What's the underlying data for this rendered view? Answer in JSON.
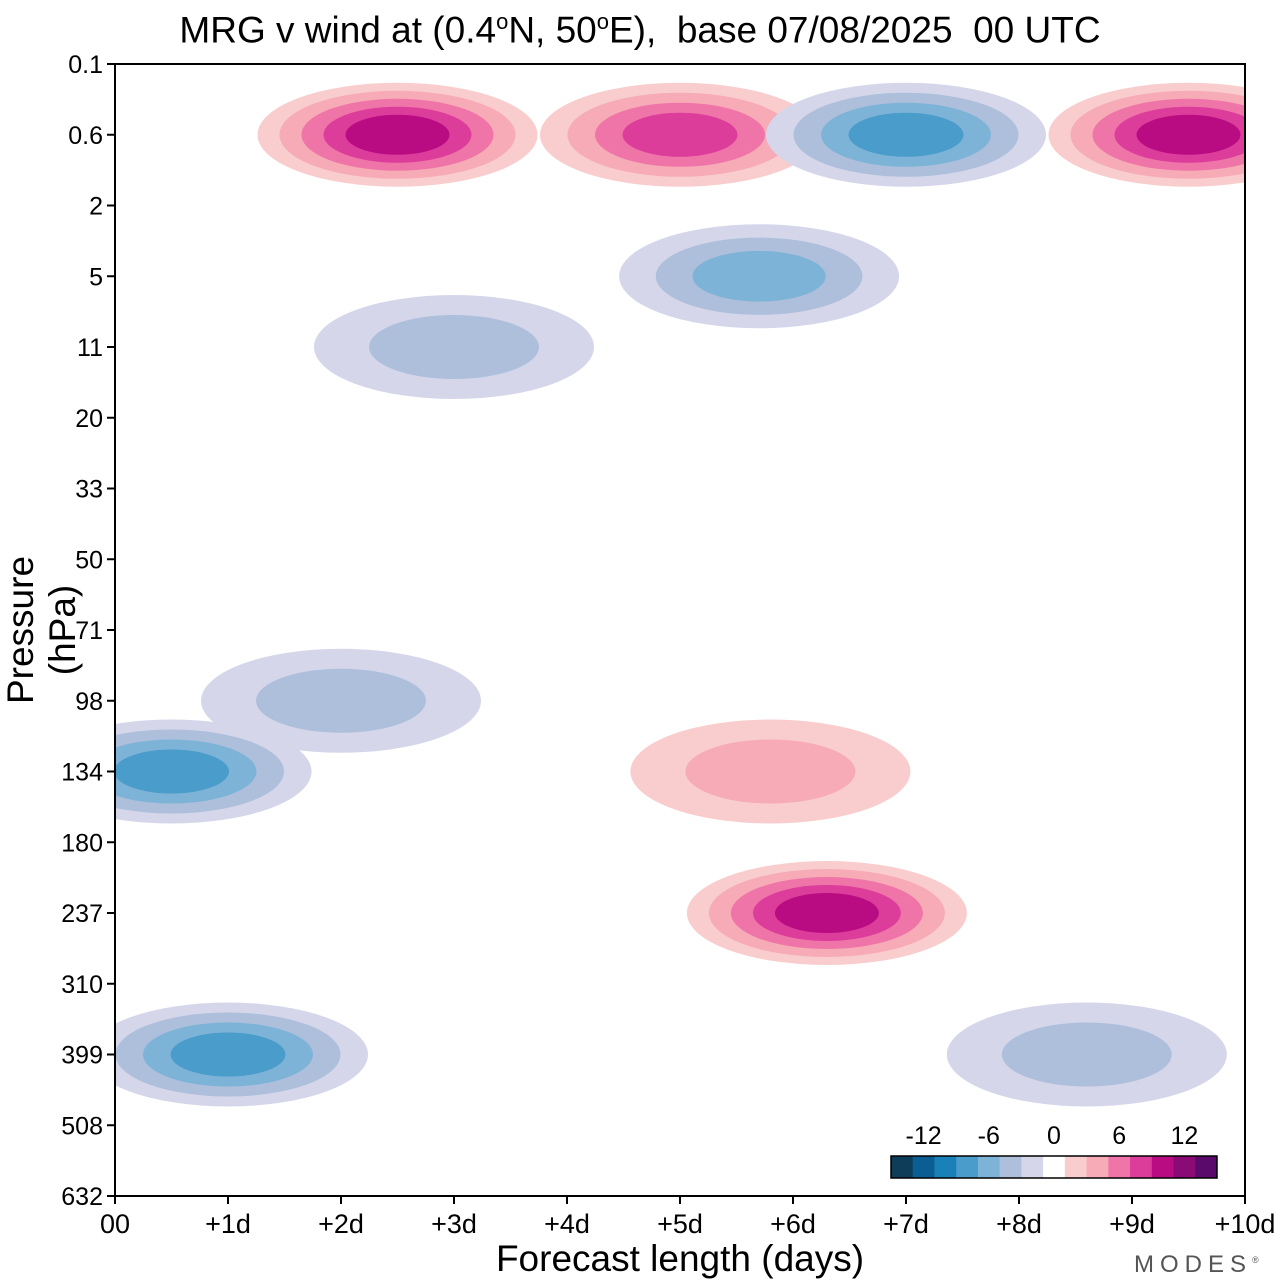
{
  "title": {
    "prefix": "MRG v wind at (0.4",
    "deg1": "o",
    "mid": "N, 50",
    "deg2": "o",
    "suffix": "E),  base 07/08/2025  00 UTC"
  },
  "brand": {
    "name": "MODES",
    "mark": "®"
  },
  "colors": {
    "neg": [
      "#0e3d5a",
      "#0b5e92",
      "#1a80b8",
      "#4a9cca",
      "#7eb3d8",
      "#aebfdc",
      "#d5d6ea"
    ],
    "zero": "#ffffff",
    "pos": [
      "#f9cdcd",
      "#f6abb6",
      "#ef75a8",
      "#dc3d9a",
      "#b90c82",
      "#8a0a76",
      "#5a0a6a"
    ]
  },
  "chart_data": {
    "type": "contour",
    "title": "MRG v wind at (0.4°N, 50°E),  base 07/08/2025  00 UTC",
    "xlabel": "Forecast length (days)",
    "ylabel": "Pressure (hPa)",
    "x_ticks": [
      "00",
      "+1d",
      "+2d",
      "+3d",
      "+4d",
      "+5d",
      "+6d",
      "+7d",
      "+8d",
      "+9d",
      "+10d"
    ],
    "xlim": [
      0,
      10
    ],
    "y_ticks": [
      "0.1",
      "0.6",
      "2",
      "5",
      "11",
      "20",
      "33",
      "50",
      "71",
      "98",
      "134",
      "180",
      "237",
      "310",
      "399",
      "508",
      "632"
    ],
    "y_order": "top-to-bottom",
    "colorbar": {
      "tick_labels": [
        "-12",
        "-6",
        "0",
        "6",
        "12"
      ],
      "levels": [
        -14,
        -12,
        -10,
        -8,
        -6,
        -4,
        -2,
        0,
        2,
        4,
        6,
        8,
        10,
        12,
        14
      ]
    },
    "features": [
      {
        "x": 1.0,
        "p": "399",
        "v": -9
      },
      {
        "x": 0.5,
        "p": "134",
        "v": -8
      },
      {
        "x": 2.0,
        "p": "98",
        "v": -5
      },
      {
        "x": 6.3,
        "p": "237",
        "v": 10
      },
      {
        "x": 5.8,
        "p": "134",
        "v": 5
      },
      {
        "x": 2.5,
        "p": "0.6",
        "v": 10
      },
      {
        "x": 5.0,
        "p": "0.6",
        "v": 9
      },
      {
        "x": 7.0,
        "p": "0.6",
        "v": -9
      },
      {
        "x": 5.7,
        "p": "5",
        "v": -7
      },
      {
        "x": 8.6,
        "p": "399",
        "v": -5
      },
      {
        "x": 9.5,
        "p": "0.6",
        "v": 11
      },
      {
        "x": 3.0,
        "p": "11",
        "v": -4
      }
    ]
  }
}
